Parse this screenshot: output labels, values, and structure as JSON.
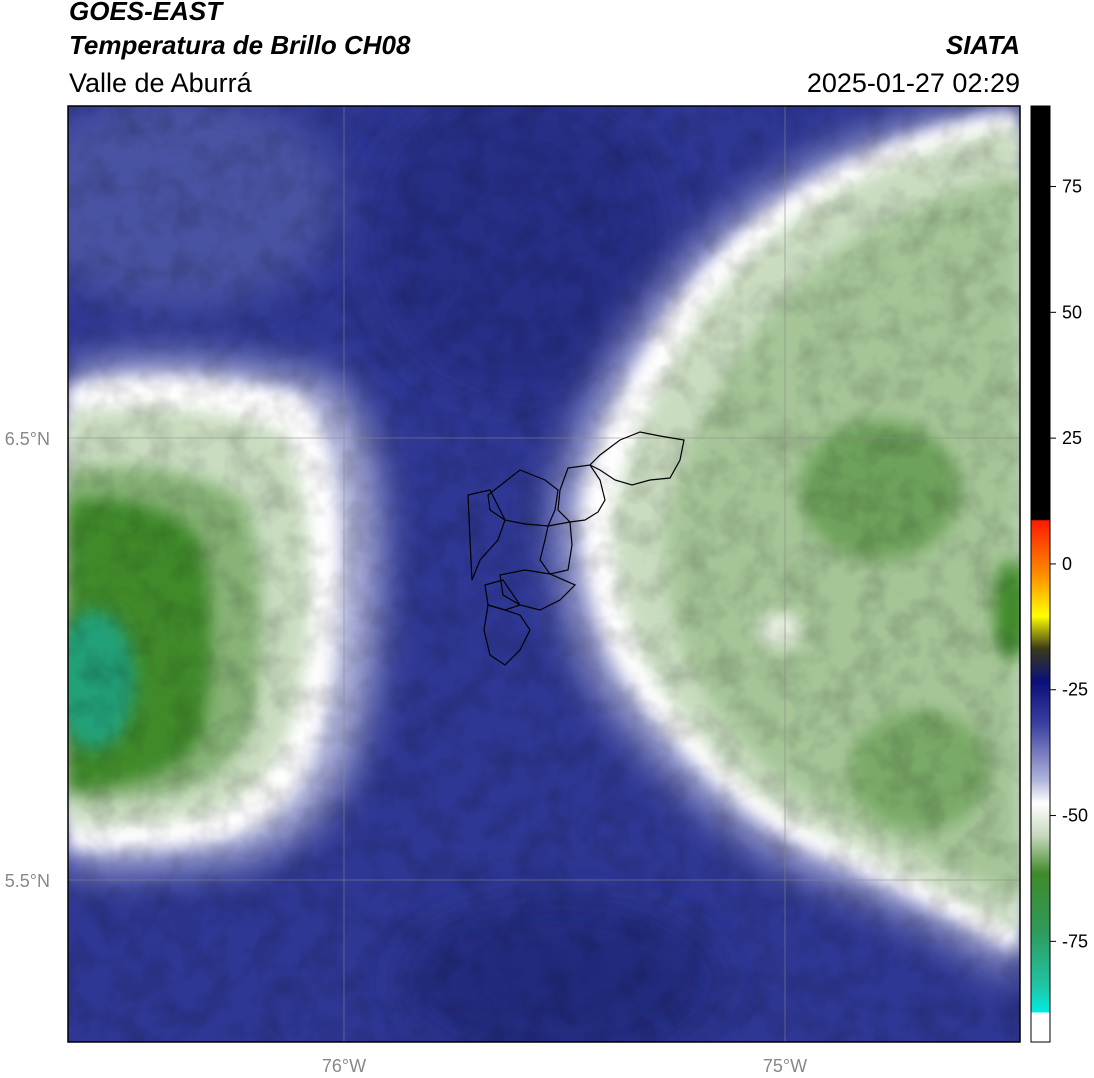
{
  "header": {
    "satellite": "GOES-EAST",
    "product": "Temperatura de Brillo CH08",
    "region": "Valle de Aburrá",
    "agency": "SIATA",
    "timestamp": "2025-01-27 02:29"
  },
  "map": {
    "lat_labels": [
      "6.5°N",
      "5.5°N"
    ],
    "lon_labels": [
      "76°W",
      "75°W"
    ],
    "gridlines": true
  },
  "colorbar": {
    "ticks": [
      "75",
      "50",
      "25",
      "0",
      "-25",
      "-50",
      "-75"
    ],
    "tick_values": [
      75,
      50,
      25,
      0,
      -25,
      -50,
      -75
    ],
    "range": [
      -95,
      91
    ],
    "colors": {
      "warm_black": "#000000",
      "red": "#ff2a00",
      "orange": "#ff9900",
      "yellow": "#ffff00",
      "navy": "#1a1f7a",
      "blue": "#2c3590",
      "lavender": "#a9acd6",
      "white": "#ffffff",
      "light_green": "#c5d8bc",
      "green": "#3f8a2a",
      "teal": "#20c4a4",
      "cyan": "#00e8dc"
    }
  }
}
